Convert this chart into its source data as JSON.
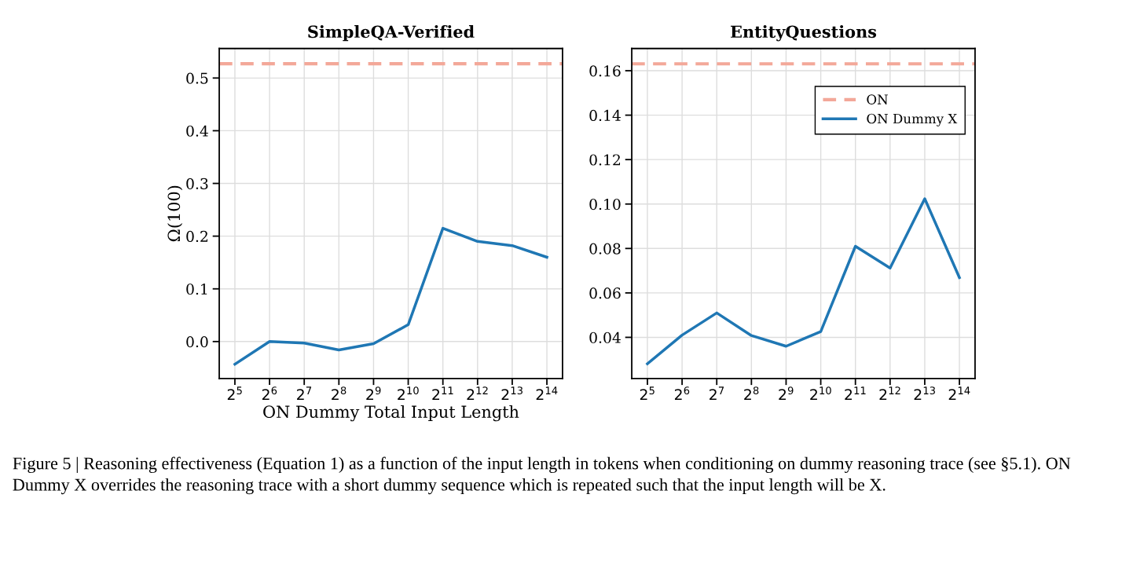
{
  "chart_data": [
    {
      "type": "line",
      "title": "SimpleQA-Verified",
      "xlabel": "ON Dummy Total Input Length",
      "ylabel": "Ω(100)",
      "log": "x",
      "x": [
        32,
        64,
        128,
        256,
        512,
        1024,
        2048,
        4096,
        8192,
        16384
      ],
      "xlim": [
        23.4,
        22400
      ],
      "xticks": [
        {
          "value": 32,
          "label": "2$^{5}$"
        },
        {
          "value": 64,
          "label": "2$^{6}$"
        },
        {
          "value": 128,
          "label": "2$^{7}$"
        },
        {
          "value": 256,
          "label": "2$^{8}$"
        },
        {
          "value": 512,
          "label": "2$^{9}$"
        },
        {
          "value": 1024,
          "label": "2$^{10}$"
        },
        {
          "value": 2048,
          "label": "2$^{11}$"
        },
        {
          "value": 4096,
          "label": "2$^{12}$"
        },
        {
          "value": 8192,
          "label": "2$^{13}$"
        },
        {
          "value": 16384,
          "label": "2$^{14}$"
        }
      ],
      "ylim": [
        -0.07,
        0.556
      ],
      "yticks": [
        {
          "value": 0,
          "label": "0.0"
        },
        0.1,
        0.2,
        0.3,
        0.4,
        0.5
      ],
      "series": [
        {
          "color": "#1f77b4",
          "values": [
            -0.043,
            0.0,
            -0.003,
            -0.016,
            -0.004,
            0.032,
            0.215,
            0.19,
            0.182,
            0.16
          ]
        }
      ],
      "ref_lines": [
        {
          "axis": "y",
          "value": 0.527,
          "color": "#f3a899",
          "line_style": "dashed"
        }
      ],
      "grid": true,
      "legend": false,
      "line_style": "solid",
      "marker": "none",
      "annotations": [
        "Figure 5 | Reasoning effectiveness (Equation 1) as a function of the input length in tokens when conditioning on dummy reasoning trace (see §5.1). ON Dummy X overrides the reasoning trace with a short dummy sequence which is repeated such that the input length will be X."
      ]
    },
    {
      "type": "line",
      "title": "EntityQuestions",
      "log": "x",
      "x": [
        32,
        64,
        128,
        256,
        512,
        1024,
        2048,
        4096,
        8192,
        16384
      ],
      "xlim": [
        23.4,
        22400
      ],
      "xticks": [
        {
          "value": 32,
          "label": "2$^{5}$"
        },
        {
          "value": 64,
          "label": "2$^{6}$"
        },
        {
          "value": 128,
          "label": "2$^{7}$"
        },
        {
          "value": 256,
          "label": "2$^{8}$"
        },
        {
          "value": 512,
          "label": "2$^{9}$"
        },
        {
          "value": 1024,
          "label": "2$^{10}$"
        },
        {
          "value": 2048,
          "label": "2$^{11}$"
        },
        {
          "value": 4096,
          "label": "2$^{12}$"
        },
        {
          "value": 8192,
          "label": "2$^{13}$"
        },
        {
          "value": 16384,
          "label": "2$^{14}$"
        }
      ],
      "ylim": [
        0.0215,
        0.17
      ],
      "yticks": [
        {
          "value": 0.04,
          "label": "0.04"
        },
        {
          "value": 0.06,
          "label": "0.06"
        },
        {
          "value": 0.08,
          "label": "0.08"
        },
        {
          "value": 0.1,
          "label": "0.10"
        },
        {
          "value": 0.12,
          "label": "0.12"
        },
        {
          "value": 0.14,
          "label": "0.14"
        },
        {
          "value": 0.16,
          "label": "0.16"
        }
      ],
      "series": [
        {
          "name": "ON Dummy X",
          "color": "#1f77b4",
          "values": [
            0.0281,
            0.041,
            0.051,
            0.0408,
            0.036,
            0.0426,
            0.081,
            0.0712,
            0.1024,
            0.0669
          ]
        }
      ],
      "ref_lines": [
        {
          "axis": "y",
          "value": 0.1631,
          "label": "ON",
          "color": "#f3a899",
          "line_style": "dashed"
        }
      ],
      "grid": true,
      "legend": "top right",
      "line_style": "solid",
      "marker": "none"
    }
  ]
}
